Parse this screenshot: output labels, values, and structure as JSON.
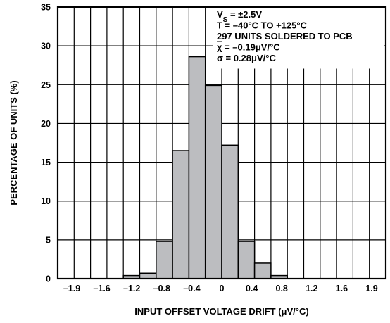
{
  "chart_data": {
    "type": "bar",
    "title": "",
    "xlabel": "INPUT OFFSET VOLTAGE DRIFT (μV/°C)",
    "ylabel": "PERCENTAGE OF UNITS (%)",
    "xlim": [
      -2.0,
      2.0
    ],
    "ylim": [
      0,
      35
    ],
    "x_ticks": [
      "–1.9",
      "–1.6",
      "–1.2",
      "–0.8",
      "–0.4",
      "0",
      "0.4",
      "0.8",
      "1.2",
      "1.6",
      "1.9"
    ],
    "y_ticks": [
      "0",
      "5",
      "10",
      "15",
      "20",
      "25",
      "30",
      "35"
    ],
    "bin_width": 0.2,
    "bins": [
      {
        "start": -1.2,
        "end": -1.0,
        "value": 0.4
      },
      {
        "start": -1.0,
        "end": -0.8,
        "value": 0.7
      },
      {
        "start": -0.8,
        "end": -0.6,
        "value": 4.8
      },
      {
        "start": -0.6,
        "end": -0.4,
        "value": 16.5
      },
      {
        "start": -0.4,
        "end": -0.2,
        "value": 28.6
      },
      {
        "start": -0.2,
        "end": 0.0,
        "value": 24.9
      },
      {
        "start": 0.0,
        "end": 0.2,
        "value": 17.2
      },
      {
        "start": 0.2,
        "end": 0.4,
        "value": 4.8
      },
      {
        "start": 0.4,
        "end": 0.6,
        "value": 2.0
      },
      {
        "start": 0.6,
        "end": 0.8,
        "value": 0.4
      }
    ],
    "grid": true,
    "bar_color": "#bcbdc0",
    "annotations": [
      {
        "prefix": "V",
        "subscript": "S",
        "suffix": " = ±2.5V"
      },
      {
        "text": "T = –40°C TO +125°C"
      },
      {
        "text": "297 UNITS SOLDERED TO PCB"
      },
      {
        "prefix": "χ",
        "overline": true,
        "suffix": " = –0.19μV/°C"
      },
      {
        "text": "σ = 0.28μV/°C"
      }
    ]
  }
}
